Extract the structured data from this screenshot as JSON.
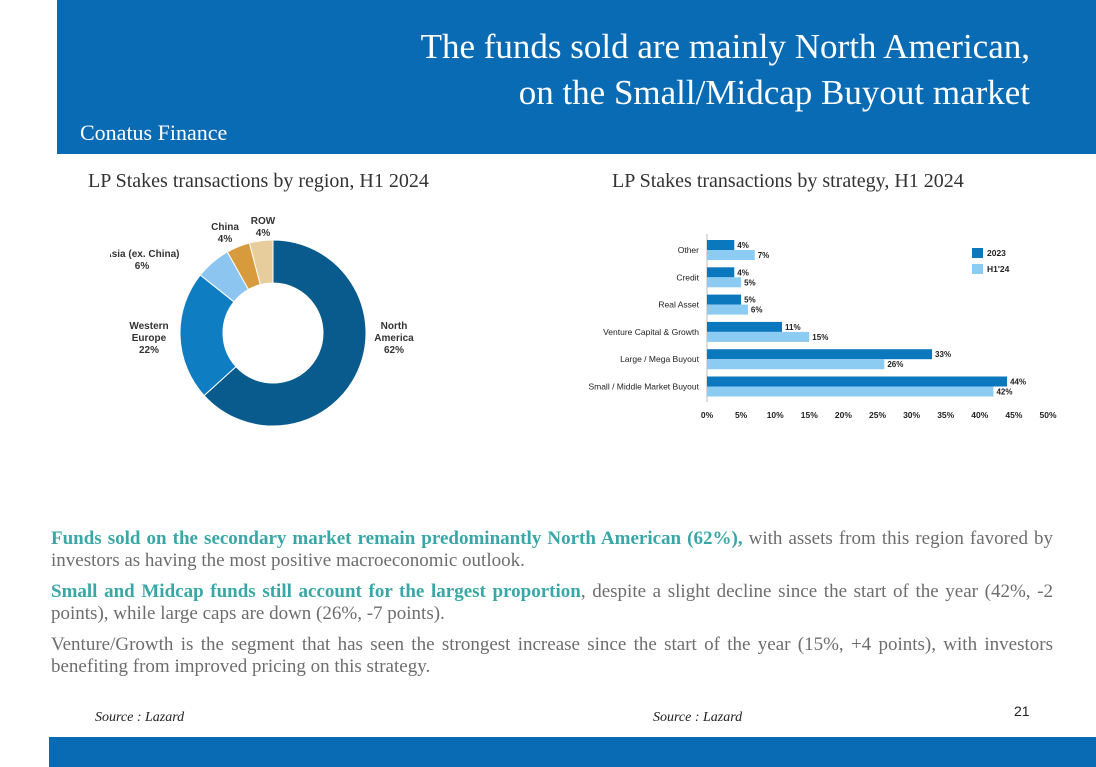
{
  "header": {
    "title_line1": "The funds sold are mainly North American,",
    "title_line2": "on the Small/Midcap Buyout market",
    "brand": "Conatus Finance"
  },
  "chart_data": [
    {
      "type": "pie",
      "title": "LP Stakes transactions by region, H1 2024",
      "categories": [
        "North America",
        "Western Europe",
        "Asia (ex. China)",
        "China",
        "ROW"
      ],
      "label_lines": [
        [
          "North",
          "America",
          "62%"
        ],
        [
          "Western",
          "Europe",
          "22%"
        ],
        [
          "Asia (ex. China)",
          "6%"
        ],
        [
          "China",
          "4%"
        ],
        [
          "ROW",
          "4%"
        ]
      ],
      "values": [
        62,
        22,
        6,
        4,
        4
      ],
      "colors": [
        "#085b8c",
        "#0e7dc2",
        "#8cc6f0",
        "#d79a3c",
        "#e7cc9c"
      ]
    },
    {
      "type": "bar",
      "orientation": "horizontal",
      "title": "LP Stakes transactions by strategy, H1 2024",
      "categories": [
        "Other",
        "Credit",
        "Real Asset",
        "Venture Capital & Growth",
        "Large / Mega Buyout",
        "Small / Middle Market Buyout"
      ],
      "series": [
        {
          "name": "2023",
          "values": [
            4,
            4,
            5,
            11,
            33,
            44
          ],
          "labels": [
            "4%",
            "4%",
            "5%",
            "11%",
            "33%",
            "44%"
          ],
          "color": "#0b78bd"
        },
        {
          "name": "H1'24",
          "values": [
            7,
            5,
            6,
            15,
            26,
            42
          ],
          "labels": [
            "7%",
            "5%",
            "6%",
            "15%",
            "26%",
            "42%"
          ],
          "color": "#8ccbf2"
        }
      ],
      "xlim": [
        0,
        50
      ],
      "ticks": [
        "0%",
        "5%",
        "10%",
        "15%",
        "20%",
        "25%",
        "30%",
        "35%",
        "40%",
        "45%",
        "50%"
      ],
      "legend": "right"
    }
  ],
  "body": {
    "p1_highlight": "Funds sold on the secondary market remain predominantly North American (62%),",
    "p1_rest": " with assets from this region favored by investors as having the most positive macroeconomic outlook.",
    "p2_highlight": "Small and Midcap funds still account for the largest proportion",
    "p2_rest": ", despite a slight decline since the start of the year (42%, -2 points), while large caps are down (26%, -7 points).",
    "p3": "Venture/Growth is the segment that has seen the strongest increase since the start of the year (15%, +4 points), with investors benefiting from improved pricing on this strategy."
  },
  "footer": {
    "source_left": "Source : Lazard",
    "source_right": "Source : Lazard",
    "page_number": "21"
  }
}
